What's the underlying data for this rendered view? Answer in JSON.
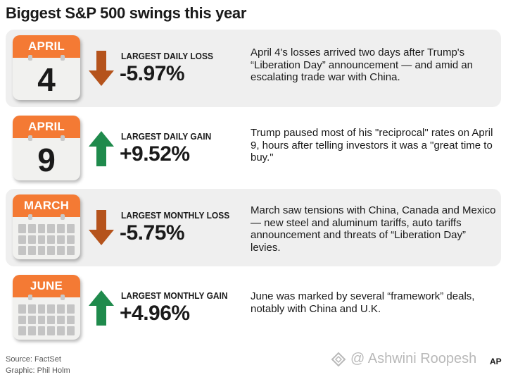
{
  "title": "Biggest S&P 500 swings this year",
  "colors": {
    "calendar_header": "#f47a34",
    "loss_arrow": "#b5531c",
    "gain_arrow": "#1f8a4c",
    "shaded_row": "#efefef"
  },
  "rows": [
    {
      "calendar_month": "APRIL",
      "calendar_day": "4",
      "arrow": "down-arrow-icon",
      "label": "LARGEST DAILY LOSS",
      "value": "-5.97%",
      "description": "April 4's losses arrived two days after Trump's “Liberation Day” announcement — and amid an escalating trade war with China."
    },
    {
      "calendar_month": "APRIL",
      "calendar_day": "9",
      "arrow": "up-arrow-icon",
      "label": "LARGEST DAILY GAIN",
      "value": "+9.52%",
      "description": "Trump paused most of his \"reciprocal\" rates on April 9, hours after telling investors it was a \"great time to buy.\""
    },
    {
      "calendar_month": "MARCH",
      "calendar_day": "",
      "arrow": "down-arrow-icon",
      "label": "LARGEST MONTHLY LOSS",
      "value": "-5.75%",
      "description": "March saw tensions with China, Canada and Mexico — new steel and aluminum tariffs, auto tariffs announcement and threats of “Liberation Day” levies."
    },
    {
      "calendar_month": "JUNE",
      "calendar_day": "",
      "arrow": "up-arrow-icon",
      "label": "LARGEST MONTHLY GAIN",
      "value": "+4.96%",
      "description": "June was marked by several “framework” deals, notably with China and U.K."
    }
  ],
  "footer": {
    "source": "Source: FactSet",
    "graphic": "Graphic: Phil Holm",
    "watermark": "@ Ashwini Roopesh",
    "logo": "AP"
  }
}
